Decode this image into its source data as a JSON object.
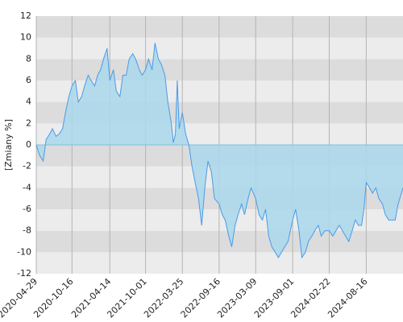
{
  "chart_data": {
    "type": "area",
    "y_label": "[Zmiany %]",
    "x": [
      "2020-04-29",
      "2020-05-15",
      "2020-06-01",
      "2020-06-15",
      "2020-07-01",
      "2020-07-15",
      "2020-08-01",
      "2020-08-15",
      "2020-09-01",
      "2020-09-15",
      "2020-10-01",
      "2020-10-16",
      "2020-11-01",
      "2020-11-15",
      "2020-12-01",
      "2020-12-15",
      "2021-01-01",
      "2021-01-15",
      "2021-02-01",
      "2021-02-15",
      "2021-03-01",
      "2021-03-15",
      "2021-04-01",
      "2021-04-14",
      "2021-05-01",
      "2021-05-15",
      "2021-06-01",
      "2021-06-15",
      "2021-07-01",
      "2021-07-15",
      "2021-08-01",
      "2021-08-15",
      "2021-09-01",
      "2021-09-15",
      "2021-10-01",
      "2021-10-15",
      "2021-11-01",
      "2021-11-15",
      "2021-12-01",
      "2021-12-15",
      "2022-01-01",
      "2022-01-15",
      "2022-02-01",
      "2022-02-10",
      "2022-02-20",
      "2022-03-01",
      "2022-03-10",
      "2022-03-25",
      "2022-04-10",
      "2022-04-25",
      "2022-05-10",
      "2022-05-25",
      "2022-06-10",
      "2022-06-25",
      "2022-07-10",
      "2022-07-25",
      "2022-08-10",
      "2022-08-25",
      "2022-09-16",
      "2022-10-01",
      "2022-10-15",
      "2022-11-01",
      "2022-11-15",
      "2022-12-01",
      "2022-12-15",
      "2023-01-01",
      "2023-01-15",
      "2023-02-01",
      "2023-02-15",
      "2023-03-09",
      "2023-03-25",
      "2023-04-10",
      "2023-04-25",
      "2023-05-10",
      "2023-05-25",
      "2023-06-10",
      "2023-06-25",
      "2023-07-10",
      "2023-07-25",
      "2023-08-10",
      "2023-09-01",
      "2023-09-15",
      "2023-10-01",
      "2023-10-15",
      "2023-11-01",
      "2023-11-15",
      "2023-12-01",
      "2023-12-15",
      "2024-01-01",
      "2024-01-15",
      "2024-02-01",
      "2024-02-22",
      "2024-03-10",
      "2024-03-25",
      "2024-04-10",
      "2024-04-25",
      "2024-05-10",
      "2024-05-25",
      "2024-06-10",
      "2024-06-25",
      "2024-07-10",
      "2024-07-25",
      "2024-08-05",
      "2024-08-16",
      "2024-09-01",
      "2024-09-15",
      "2024-10-01",
      "2024-10-15",
      "2024-11-01",
      "2024-11-15",
      "2024-12-01",
      "2024-12-15",
      "2025-01-01",
      "2025-01-15",
      "2025-02-07"
    ],
    "series": [
      {
        "color": "#4a9be8",
        "fill": "#a9d8ec",
        "values": [
          0,
          -1,
          -1.5,
          0.5,
          1,
          1.5,
          0.8,
          1,
          1.5,
          3,
          4.5,
          5.5,
          6,
          4,
          4.5,
          5.5,
          6.5,
          6,
          5.5,
          6.5,
          7,
          8,
          9,
          6,
          7,
          5,
          4.5,
          6.5,
          6.5,
          8,
          8.5,
          8,
          7,
          6.5,
          7,
          8,
          7,
          9.5,
          8,
          7.5,
          6.5,
          4,
          2,
          0.2,
          1,
          6,
          1.5,
          3,
          1,
          0,
          -2,
          -3.5,
          -5,
          -7.5,
          -4,
          -1.5,
          -2.5,
          -5,
          -5.5,
          -6.5,
          -7,
          -8.5,
          -9.5,
          -7.5,
          -6.5,
          -5.5,
          -6.5,
          -5,
          -4,
          -5,
          -6.5,
          -7,
          -6,
          -8.5,
          -9.5,
          -10,
          -10.5,
          -10,
          -9.5,
          -9,
          -7,
          -6,
          -8,
          -10.5,
          -10,
          -9,
          -8.5,
          -8,
          -7.5,
          -8.5,
          -8,
          -8,
          -8.5,
          -8,
          -7.5,
          -8,
          -8.5,
          -9,
          -8,
          -7,
          -7.5,
          -7.5,
          -6,
          -3.5,
          -4,
          -4.5,
          -4,
          -5,
          -5.5,
          -6.5,
          -7,
          -7,
          -7,
          -5.5,
          -4
        ]
      }
    ],
    "xlim": [
      "2020-04-29",
      "2025-02-07"
    ],
    "xticks": [
      "2020-04-29",
      "2020-10-16",
      "2021-04-14",
      "2021-10-01",
      "2022-03-25",
      "2022-09-16",
      "2023-03-09",
      "2023-09-01",
      "2024-02-22",
      "2024-08-16"
    ],
    "ylim": [
      -12,
      12
    ],
    "yticks": [
      -12,
      -10,
      -8,
      -6,
      -4,
      -2,
      0,
      2,
      4,
      6,
      8,
      10,
      12
    ],
    "band_colors": [
      "#dcdcdc",
      "#ececec"
    ],
    "grid": true
  }
}
